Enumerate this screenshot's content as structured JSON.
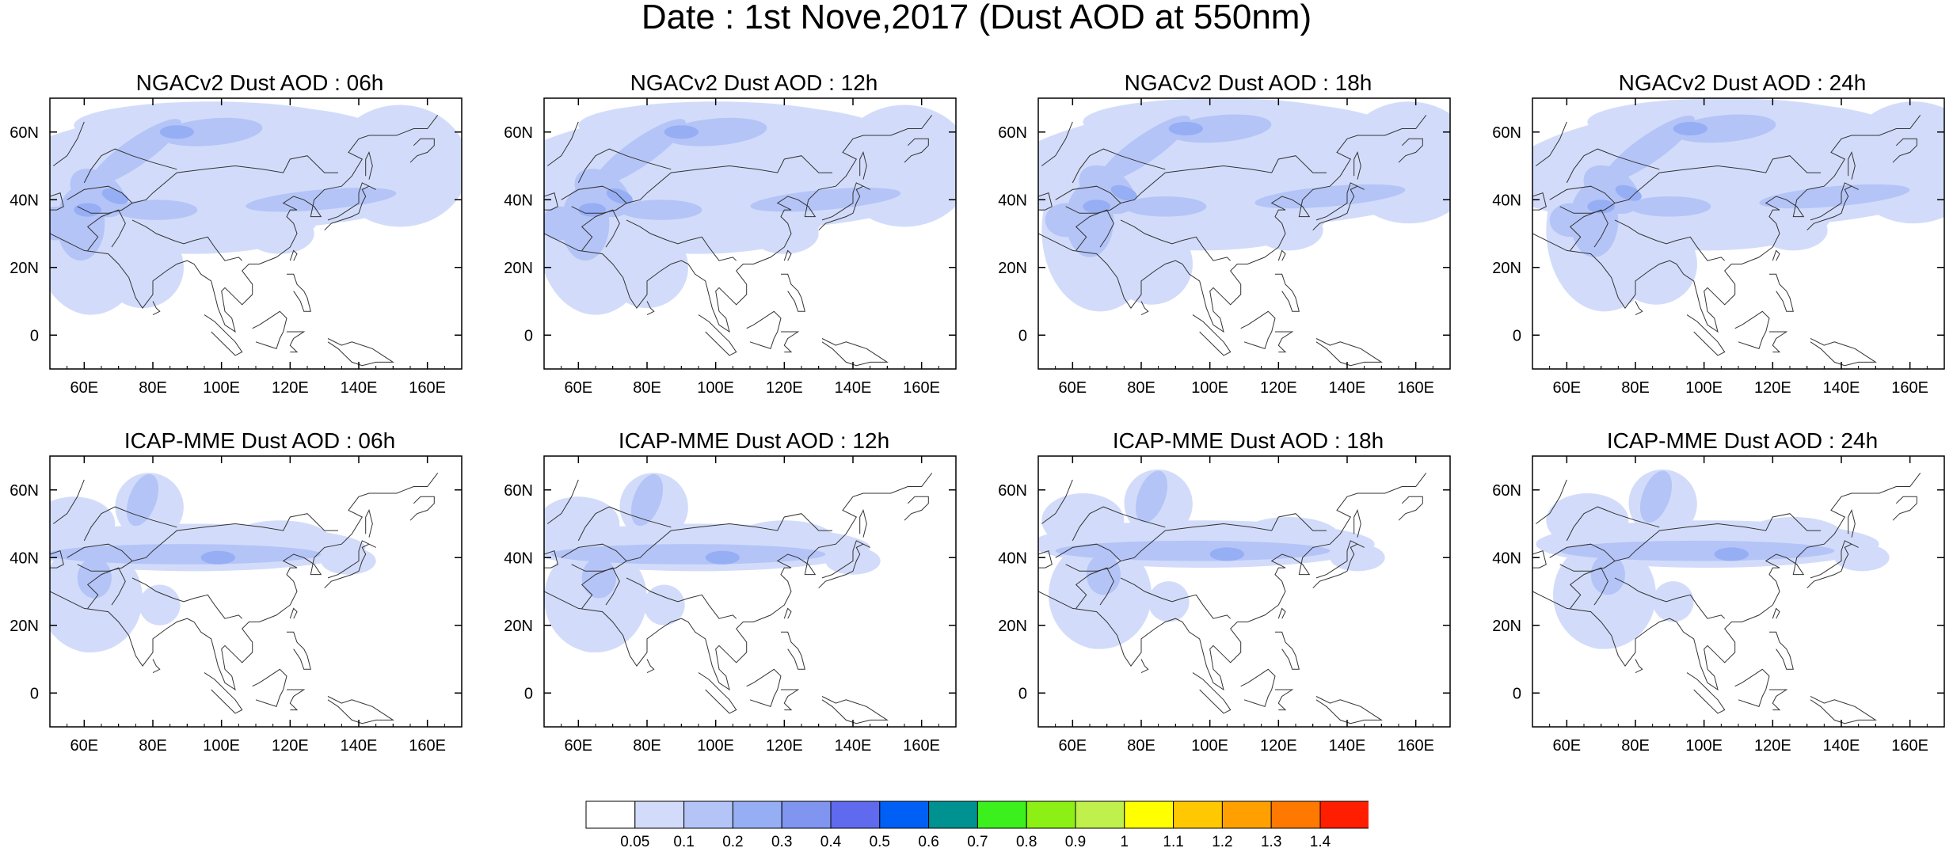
{
  "figure": {
    "title": "Date : 1st Nove,2017 (Dust AOD at 550nm)"
  },
  "map_axes": {
    "lon_range": [
      50,
      170
    ],
    "lat_range": [
      -10,
      70
    ],
    "lon_ticks": [
      60,
      80,
      100,
      120,
      140,
      160
    ],
    "lon_tick_labels": [
      "60E",
      "80E",
      "100E",
      "120E",
      "140E",
      "160E"
    ],
    "lat_ticks": [
      0,
      20,
      40,
      60
    ],
    "lat_tick_labels": [
      "0",
      "20N",
      "40N",
      "60N"
    ]
  },
  "panels": [
    {
      "title": "NGACv2 Dust AOD : 06h",
      "model": "NGACv2",
      "hour": 6
    },
    {
      "title": "NGACv2 Dust AOD : 12h",
      "model": "NGACv2",
      "hour": 12
    },
    {
      "title": "NGACv2 Dust AOD : 18h",
      "model": "NGACv2",
      "hour": 18
    },
    {
      "title": "NGACv2 Dust AOD : 24h",
      "model": "NGACv2",
      "hour": 24
    },
    {
      "title": "ICAP-MME Dust AOD : 06h",
      "model": "ICAP-MME",
      "hour": 6
    },
    {
      "title": "ICAP-MME Dust AOD : 12h",
      "model": "ICAP-MME",
      "hour": 12
    },
    {
      "title": "ICAP-MME Dust AOD : 18h",
      "model": "ICAP-MME",
      "hour": 18
    },
    {
      "title": "ICAP-MME Dust AOD : 24h",
      "model": "ICAP-MME",
      "hour": 24
    }
  ],
  "colorbar": {
    "labels": [
      "0.05",
      "0.1",
      "0.2",
      "0.3",
      "0.4",
      "0.5",
      "0.6",
      "0.7",
      "0.8",
      "0.9",
      "1",
      "1.1",
      "1.2",
      "1.3",
      "1.4"
    ],
    "colors": [
      "#ffffff",
      "#d2dcfa",
      "#b4c4f7",
      "#96aef4",
      "#7f95f0",
      "#5f6aee",
      "#005ff5",
      "#009191",
      "#3cf01e",
      "#8cf014",
      "#c0f04c",
      "#ffff00",
      "#ffc800",
      "#ffa000",
      "#ff7800",
      "#ff1e00"
    ]
  }
}
